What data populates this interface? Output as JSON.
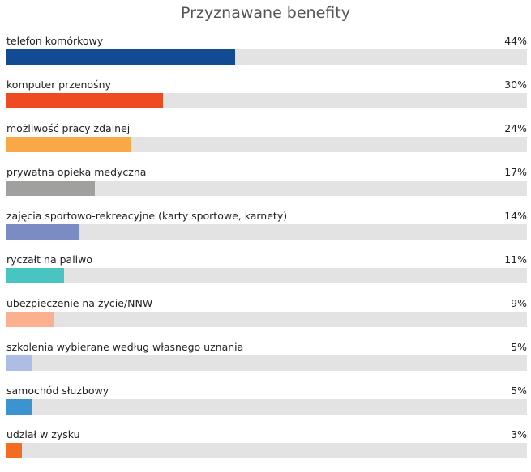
{
  "chart_data": {
    "type": "bar",
    "orientation": "horizontal",
    "title": "Przyznawane benefity",
    "xlabel": "",
    "ylabel": "",
    "xlim": [
      0,
      100
    ],
    "categories": [
      "telefon komórkowy",
      "komputer przenośny",
      "możliwość pracy zdalnej",
      "prywatna opieka medyczna",
      "zajęcia sportowo-rekreacyjne (karty sportowe, karnety)",
      "ryczałt na paliwo",
      "ubezpieczenie na życie/NNW",
      "szkolenia wybierane według własnego uznania",
      "samochód służbowy",
      "udział w zysku"
    ],
    "values": [
      44,
      30,
      24,
      17,
      14,
      11,
      9,
      5,
      5,
      3
    ],
    "value_labels": [
      "44%",
      "30%",
      "24%",
      "17%",
      "14%",
      "11%",
      "9%",
      "5%",
      "5%",
      "3%"
    ],
    "colors": [
      "#124a94",
      "#ef4b23",
      "#f9a847",
      "#a0a09f",
      "#7b8bc4",
      "#48c5c1",
      "#fbb08f",
      "#adbde4",
      "#3b94d0",
      "#f26c22"
    ],
    "track_color": "#e3e3e3",
    "grid": false,
    "legend": "none"
  }
}
